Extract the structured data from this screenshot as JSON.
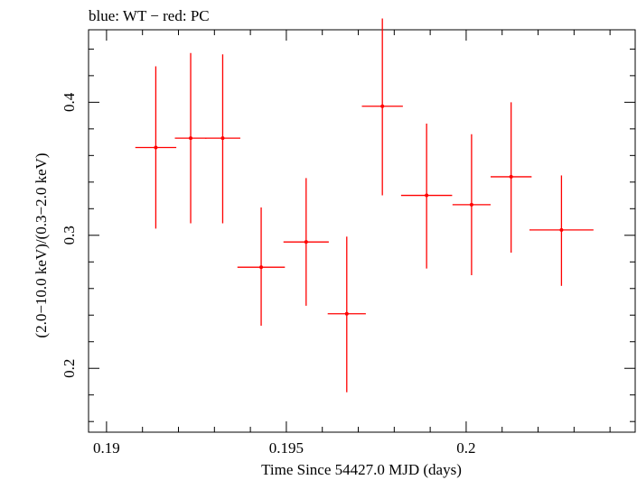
{
  "chart_data": {
    "type": "scatter",
    "title": "blue: WT − red: PC",
    "xlabel": "Time Since 54427.0 MJD (days)",
    "ylabel": "(2.0−10.0 keV)/(0.3−2.0 keV)",
    "xlim": [
      0.1895,
      0.2047
    ],
    "ylim": [
      0.152,
      0.4545
    ],
    "x_ticks": [
      {
        "value": 0.19,
        "label": "0.19"
      },
      {
        "value": 0.195,
        "label": "0.195"
      },
      {
        "value": 0.2,
        "label": "0.2"
      }
    ],
    "y_ticks": [
      {
        "value": 0.2,
        "label": "0.2"
      },
      {
        "value": 0.3,
        "label": "0.3"
      },
      {
        "value": 0.4,
        "label": "0.4"
      }
    ],
    "grid": false,
    "series": [
      {
        "color": "#ff0000",
        "points": [
          {
            "x": 0.19137,
            "xerr": 0.00057,
            "y": 0.366,
            "ylo": 0.305,
            "yhi": 0.427
          },
          {
            "x": 0.19234,
            "xerr": 0.00044,
            "y": 0.373,
            "ylo": 0.309,
            "yhi": 0.437
          },
          {
            "x": 0.19323,
            "xerr": 0.00049,
            "y": 0.373,
            "ylo": 0.309,
            "yhi": 0.436
          },
          {
            "x": 0.1943,
            "xerr": 0.00066,
            "y": 0.276,
            "ylo": 0.232,
            "yhi": 0.321
          },
          {
            "x": 0.19555,
            "xerr": 0.00063,
            "y": 0.295,
            "ylo": 0.247,
            "yhi": 0.343
          },
          {
            "x": 0.19668,
            "xerr": 0.00053,
            "y": 0.241,
            "ylo": 0.182,
            "yhi": 0.299
          },
          {
            "x": 0.19767,
            "xerr": 0.00057,
            "y": 0.397,
            "ylo": 0.33,
            "yhi": 0.463
          },
          {
            "x": 0.1989,
            "xerr": 0.00071,
            "y": 0.33,
            "ylo": 0.275,
            "yhi": 0.384
          },
          {
            "x": 0.20015,
            "xerr": 0.00053,
            "y": 0.323,
            "ylo": 0.27,
            "yhi": 0.376
          },
          {
            "x": 0.20125,
            "xerr": 0.00057,
            "y": 0.344,
            "ylo": 0.287,
            "yhi": 0.4
          },
          {
            "x": 0.20265,
            "xerr": 0.00089,
            "y": 0.304,
            "ylo": 0.262,
            "yhi": 0.345
          }
        ]
      }
    ]
  }
}
